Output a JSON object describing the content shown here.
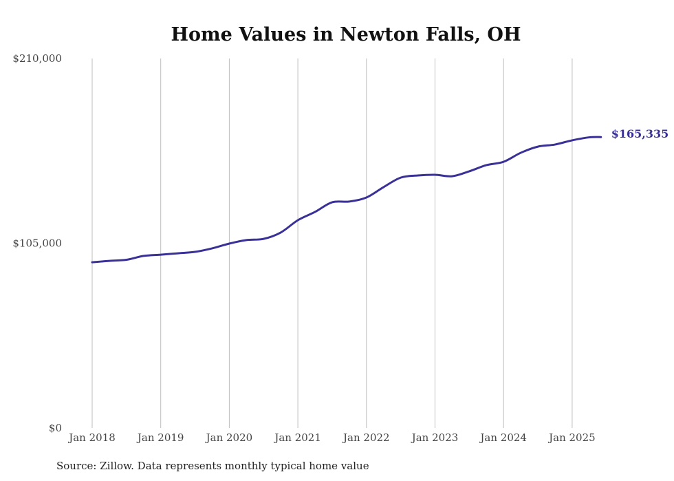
{
  "chart_data": {
    "type": "line",
    "title": "Home Values in Newton Falls, OH",
    "xlabel": "",
    "ylabel": "",
    "ylim": [
      0,
      210000
    ],
    "xlim": [
      2018.0,
      2025.42
    ],
    "y_ticks": [
      {
        "value": 0,
        "label": "$0"
      },
      {
        "value": 105000,
        "label": "$105,000"
      },
      {
        "value": 210000,
        "label": "$210,000"
      }
    ],
    "x_ticks": [
      {
        "value": 2018,
        "label": "Jan 2018"
      },
      {
        "value": 2019,
        "label": "Jan 2019"
      },
      {
        "value": 2020,
        "label": "Jan 2020"
      },
      {
        "value": 2021,
        "label": "Jan 2021"
      },
      {
        "value": 2022,
        "label": "Jan 2022"
      },
      {
        "value": 2023,
        "label": "Jan 2023"
      },
      {
        "value": 2024,
        "label": "Jan 2024"
      },
      {
        "value": 2025,
        "label": "Jan 2025"
      }
    ],
    "grid": "vertical",
    "series": [
      {
        "name": "Typical home value",
        "color": "#3a3197",
        "x": [
          2018.0,
          2018.25,
          2018.5,
          2018.75,
          2019.0,
          2019.25,
          2019.5,
          2019.75,
          2020.0,
          2020.25,
          2020.5,
          2020.75,
          2021.0,
          2021.25,
          2021.5,
          2021.75,
          2022.0,
          2022.25,
          2022.5,
          2022.75,
          2023.0,
          2023.25,
          2023.5,
          2023.75,
          2024.0,
          2024.25,
          2024.5,
          2024.75,
          2025.0,
          2025.25,
          2025.42
        ],
        "values": [
          94200,
          95000,
          95600,
          97800,
          98500,
          99300,
          100100,
          102100,
          104800,
          106800,
          107500,
          111100,
          118100,
          122800,
          128300,
          128700,
          131000,
          136900,
          142300,
          143500,
          143900,
          143100,
          145900,
          149400,
          151300,
          156400,
          159900,
          161100,
          163500,
          165200,
          165335
        ]
      }
    ],
    "end_label": "$165,335"
  },
  "source": "Source: Zillow. Data represents monthly typical home value"
}
